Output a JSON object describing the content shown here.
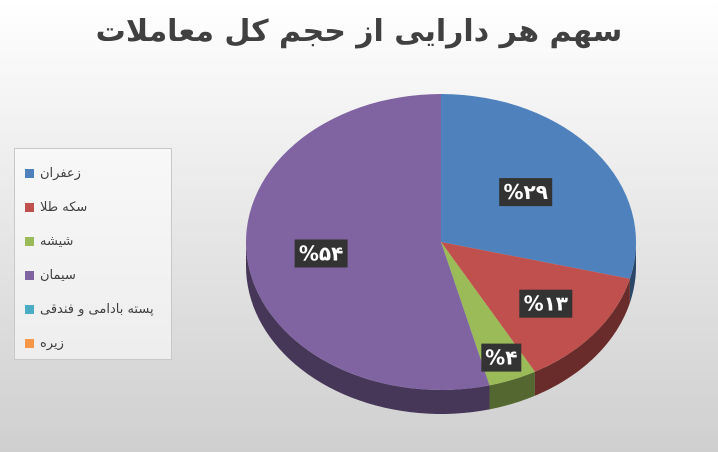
{
  "chart_data": {
    "type": "pie",
    "title": "سهم هر دارایی از حجم کل معاملات",
    "categories": [
      "زعفران",
      "سکه طلا",
      "شیشه",
      "سیمان",
      "پسته بادامی و فندقی",
      "زیره"
    ],
    "values": [
      29,
      13,
      4,
      54,
      0,
      0
    ],
    "data_labels": [
      "%۲۹",
      "%۱۳",
      "%۴",
      "%۵۴",
      "",
      ""
    ],
    "colors": [
      "#4f81bd",
      "#c0504d",
      "#9bbb59",
      "#8064a2",
      "#4bacc6",
      "#f79646"
    ],
    "legend_position": "left",
    "style": "3d"
  }
}
